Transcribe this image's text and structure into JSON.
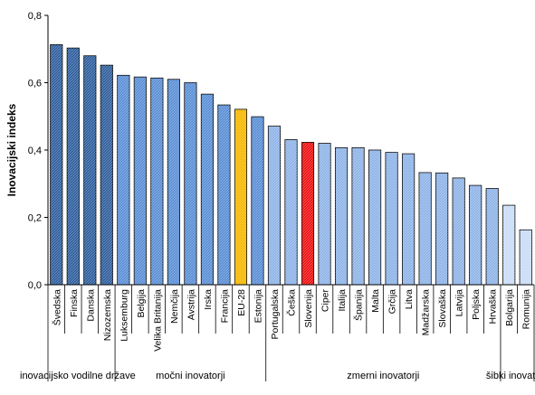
{
  "chart_data": {
    "type": "bar",
    "title": "",
    "xlabel": "",
    "ylabel": "Inovacijski indeks",
    "ylim": [
      0,
      0.8
    ],
    "yticks": [
      "0,0",
      "0,2",
      "0,4",
      "0,6",
      "0,8"
    ],
    "grid": false,
    "legend": "none",
    "categories": [
      "Švedska",
      "Finska",
      "Danska",
      "Nizozemska",
      "Luksemburg",
      "Belgija",
      "Velika Britanija",
      "Nemčija",
      "Avstrija",
      "Irska",
      "Francija",
      "EU-28",
      "Estonija",
      "Portugalska",
      "Češka",
      "Slovenija",
      "Ciper",
      "Italija",
      "Španija",
      "Malta",
      "Grčija",
      "Litva",
      "Madžarska",
      "Slovaška",
      "Latvija",
      "Poljska",
      "Hrvaška",
      "Bolgarija",
      "Romunija"
    ],
    "values": [
      0.713,
      0.703,
      0.68,
      0.652,
      0.622,
      0.617,
      0.614,
      0.61,
      0.6,
      0.566,
      0.534,
      0.521,
      0.499,
      0.471,
      0.431,
      0.423,
      0.42,
      0.407,
      0.407,
      0.4,
      0.393,
      0.389,
      0.333,
      0.332,
      0.317,
      0.295,
      0.286,
      0.236,
      0.163
    ],
    "bar_groups": [
      "leader",
      "leader",
      "leader",
      "leader",
      "strong",
      "strong",
      "strong",
      "strong",
      "strong",
      "strong",
      "strong",
      "eu",
      "strong",
      "moderate",
      "moderate",
      "slovenia",
      "moderate",
      "moderate",
      "moderate",
      "moderate",
      "moderate",
      "moderate",
      "moderate",
      "moderate",
      "moderate",
      "moderate",
      "moderate",
      "modest",
      "modest"
    ],
    "group_colors": {
      "leader": "#2f5f9e",
      "strong": "#5b8fd6",
      "eu": "#f5b800",
      "moderate": "#8fb4e8",
      "slovenia": "#ee1111",
      "modest": "#c9dcf5"
    },
    "groups": [
      {
        "label": "inovacijsko vodilne države",
        "start": 0,
        "end": 4
      },
      {
        "label": "močni inovatorji",
        "start": 4,
        "end": 13
      },
      {
        "label": "zmerni inovatorji",
        "start": 13,
        "end": 27
      },
      {
        "label": "šibki inovatorji",
        "start": 27,
        "end": 29
      }
    ]
  }
}
